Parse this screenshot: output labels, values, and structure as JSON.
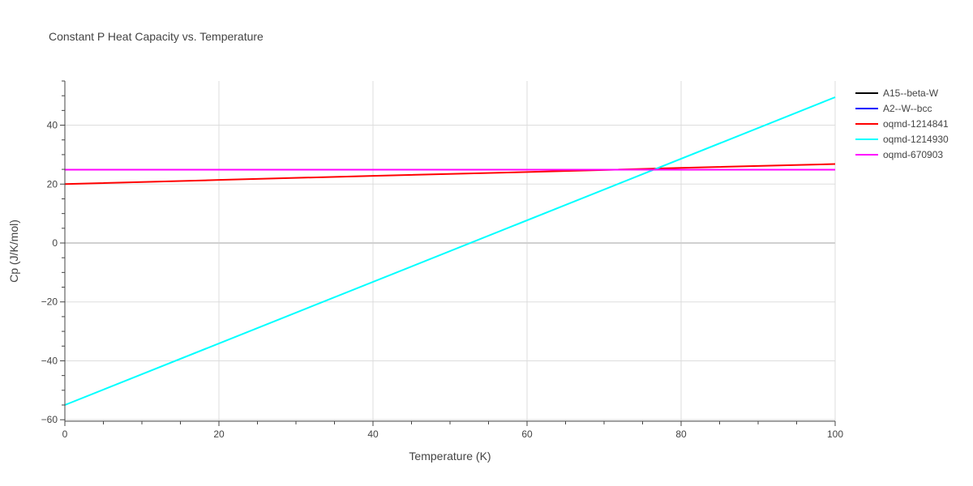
{
  "chart_data": {
    "type": "line",
    "title": "Constant P Heat Capacity vs. Temperature",
    "xlabel": "Temperature (K)",
    "ylabel": "Cp (J/K/mol)",
    "xlim": [
      0,
      100
    ],
    "ylim": [
      -60.5,
      55
    ],
    "x_ticks": [
      0,
      20,
      40,
      60,
      80,
      100
    ],
    "y_ticks": [
      -60,
      -40,
      -20,
      0,
      20,
      40
    ],
    "y_tick_labels": [
      "−60",
      "−40",
      "−20",
      "0",
      "20",
      "40"
    ],
    "grid": true,
    "legend_position": "top-right",
    "series": [
      {
        "name": "A15--beta-W",
        "color": "#000000",
        "x": [
          0,
          100
        ],
        "y": [
          24.9,
          24.9
        ]
      },
      {
        "name": "A2--W--bcc",
        "color": "#0000ff",
        "x": [
          0,
          100
        ],
        "y": [
          24.9,
          24.9
        ]
      },
      {
        "name": "oqmd-1214841",
        "color": "#ff0000",
        "x": [
          0,
          20,
          40,
          60,
          80,
          100
        ],
        "y": [
          20.0,
          21.4,
          22.8,
          24.1,
          25.5,
          26.8
        ]
      },
      {
        "name": "oqmd-1214930",
        "color": "#00ffff",
        "x": [
          0,
          100
        ],
        "y": [
          -55.0,
          49.5
        ]
      },
      {
        "name": "oqmd-670903",
        "color": "#ff00ff",
        "x": [
          0,
          100
        ],
        "y": [
          24.9,
          24.9
        ]
      }
    ]
  }
}
